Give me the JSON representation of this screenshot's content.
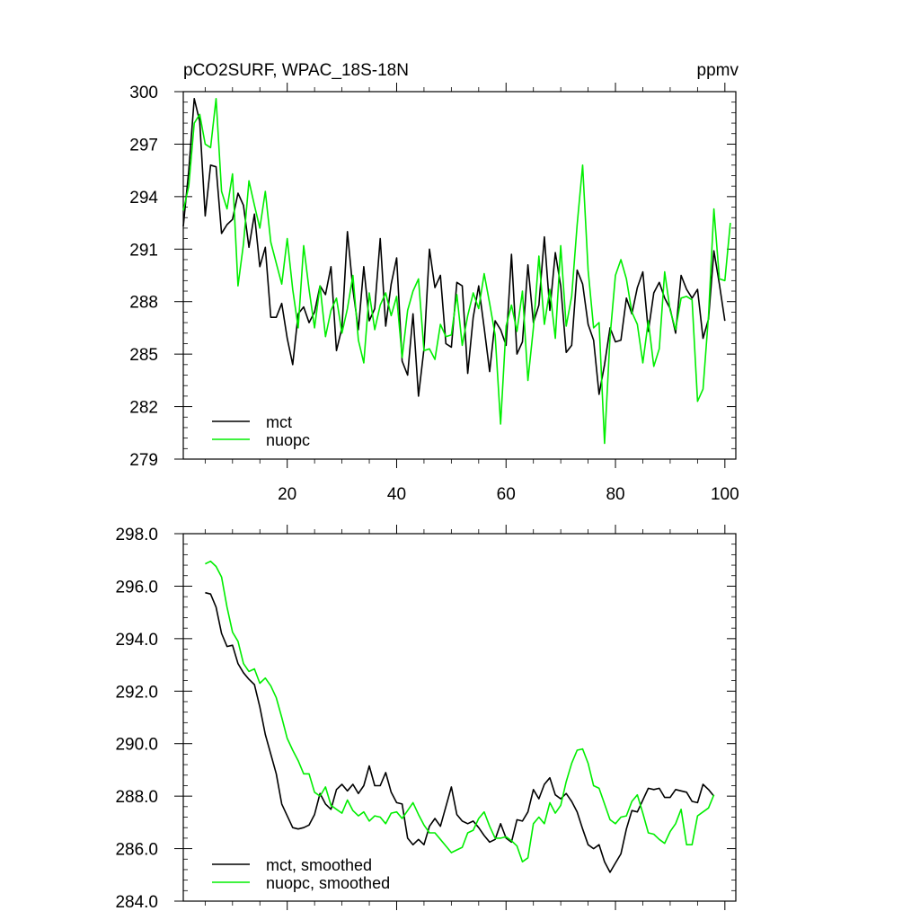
{
  "chart_data": [
    {
      "type": "line",
      "title_left": "pCO2SURF, WPAC_18S-18N",
      "title_right": "ppmv",
      "xlabel": "",
      "ylabel": "",
      "xlim": [
        1,
        102
      ],
      "ylim": [
        279,
        300
      ],
      "x_ticks": [
        20,
        40,
        60,
        80,
        100
      ],
      "x_tick_labels": [
        "20",
        "40",
        "60",
        "80",
        "100"
      ],
      "y_ticks": [
        279,
        282,
        285,
        288,
        291,
        294,
        297,
        300
      ],
      "y_tick_labels": [
        "279",
        "282",
        "285",
        "288",
        "291",
        "294",
        "297",
        "300"
      ],
      "legend_position": "bottom-left",
      "series": [
        {
          "name": "mct",
          "color": "#000000",
          "x_start": 1,
          "values": [
            292.3,
            295.5,
            299.6,
            298.3,
            292.9,
            295.8,
            295.7,
            291.9,
            292.4,
            292.7,
            294.2,
            293.5,
            291.1,
            293.0,
            290.0,
            291.1,
            287.1,
            287.1,
            287.9,
            285.9,
            284.4,
            287.3,
            287.7,
            286.8,
            287.4,
            288.9,
            288.4,
            290.0,
            285.2,
            286.5,
            292.0,
            288.7,
            286.4,
            290.0,
            286.9,
            287.6,
            291.6,
            286.6,
            289.0,
            290.5,
            284.6,
            283.8,
            287.3,
            282.6,
            285.3,
            291.0,
            288.8,
            289.5,
            285.6,
            285.4,
            289.1,
            288.9,
            283.9,
            287.1,
            288.9,
            286.5,
            284.0,
            286.9,
            286.4,
            285.5,
            290.7,
            285.0,
            285.7,
            290.1,
            286.8,
            287.8,
            291.7,
            287.5,
            290.8,
            288.9,
            285.1,
            285.5,
            289.8,
            289.0,
            286.7,
            285.8,
            282.7,
            284.4,
            286.5,
            285.7,
            285.8,
            288.2,
            287.3,
            288.8,
            289.7,
            286.3,
            288.5,
            289.1,
            288.2,
            287.6,
            286.2,
            289.5,
            288.7,
            288.2,
            288.7,
            285.9,
            287.0,
            290.9,
            289.0,
            286.9
          ]
        },
        {
          "name": "nuopc",
          "color": "#00ee00",
          "x_start": 1,
          "values": [
            293.2,
            294.6,
            298.2,
            298.7,
            297.0,
            296.8,
            299.6,
            294.3,
            293.3,
            295.3,
            288.9,
            291.3,
            294.9,
            293.5,
            292.2,
            294.3,
            291.4,
            290.2,
            289.0,
            291.6,
            288.7,
            286.5,
            291.2,
            288.7,
            286.5,
            288.9,
            286.0,
            287.5,
            288.2,
            286.2,
            287.6,
            289.5,
            285.8,
            284.5,
            288.5,
            286.4,
            287.8,
            288.5,
            287.2,
            288.3,
            284.8,
            287.5,
            288.6,
            289.3,
            285.2,
            285.3,
            284.7,
            286.7,
            286.0,
            286.1,
            288.4,
            285.5,
            287.2,
            288.5,
            287.6,
            289.6,
            287.9,
            286.1,
            281.0,
            286.6,
            287.8,
            286.3,
            288.6,
            283.5,
            286.5,
            290.6,
            286.7,
            288.7,
            285.9,
            291.2,
            286.6,
            288.3,
            292.4,
            295.8,
            289.8,
            286.5,
            286.8,
            279.9,
            286.0,
            289.5,
            290.4,
            289.3,
            287.4,
            286.7,
            284.5,
            286.9,
            284.3,
            285.3,
            289.7,
            287.5,
            286.4,
            288.2,
            288.3,
            288.1,
            282.3,
            283.0,
            287.2,
            293.3,
            289.3,
            289.2,
            292.5
          ]
        }
      ]
    },
    {
      "type": "line",
      "title_left": "",
      "title_right": "",
      "xlabel": "",
      "ylabel": "",
      "xlim": [
        1,
        102
      ],
      "ylim": [
        284.0,
        298.0
      ],
      "x_ticks": [
        20,
        40,
        60,
        80,
        100
      ],
      "x_tick_labels": [],
      "y_ticks": [
        284.0,
        286.0,
        288.0,
        290.0,
        292.0,
        294.0,
        296.0,
        298.0
      ],
      "y_tick_labels": [
        "284.0",
        "286.0",
        "288.0",
        "290.0",
        "292.0",
        "294.0",
        "296.0",
        "298.0"
      ],
      "legend_position": "bottom-left",
      "series": [
        {
          "name": "mct, smoothed",
          "color": "#000000",
          "x_start": 5,
          "values": [
            295.75,
            295.7,
            295.2,
            294.2,
            293.7,
            293.75,
            293.05,
            292.7,
            292.45,
            292.25,
            291.4,
            290.35,
            289.6,
            288.85,
            287.7,
            287.25,
            286.8,
            286.75,
            286.8,
            286.9,
            287.3,
            288.1,
            287.7,
            287.5,
            288.25,
            288.45,
            288.2,
            288.45,
            288.1,
            288.4,
            289.15,
            288.4,
            288.4,
            288.9,
            288.15,
            287.75,
            287.7,
            286.4,
            286.15,
            286.35,
            286.15,
            286.85,
            287.15,
            286.85,
            287.6,
            288.35,
            287.3,
            287.05,
            286.95,
            287.05,
            286.8,
            286.5,
            286.25,
            286.35,
            286.95,
            286.4,
            286.25,
            287.1,
            287.05,
            287.4,
            288.25,
            287.9,
            288.45,
            288.7,
            288.05,
            287.9,
            288.1,
            287.8,
            287.4,
            286.75,
            286.15,
            286.0,
            286.15,
            285.5,
            285.1,
            285.45,
            285.8,
            286.75,
            287.45,
            287.4,
            287.85,
            288.3,
            288.25,
            288.3,
            287.95,
            287.95,
            288.25,
            288.2,
            288.15,
            287.8,
            287.75,
            288.45,
            288.25,
            288.0
          ]
        },
        {
          "name": "nuopc, smoothed",
          "color": "#00ee00",
          "x_start": 5,
          "values": [
            296.85,
            296.95,
            296.75,
            296.35,
            295.2,
            294.25,
            293.9,
            293.05,
            292.75,
            292.85,
            292.3,
            292.5,
            292.2,
            291.75,
            291.0,
            290.2,
            289.75,
            289.35,
            288.85,
            288.85,
            288.15,
            288.0,
            288.35,
            287.65,
            287.5,
            287.35,
            287.85,
            287.45,
            287.25,
            287.4,
            287.05,
            287.25,
            287.2,
            286.95,
            287.35,
            287.4,
            287.15,
            287.45,
            287.75,
            287.3,
            286.9,
            286.6,
            286.6,
            286.35,
            286.1,
            285.85,
            285.95,
            286.05,
            286.6,
            286.7,
            287.15,
            287.4,
            286.85,
            286.4,
            286.4,
            286.45,
            286.3,
            286.1,
            285.5,
            285.65,
            286.95,
            287.2,
            286.95,
            287.75,
            287.35,
            287.65,
            288.55,
            289.25,
            289.75,
            289.8,
            289.25,
            288.4,
            288.3,
            287.7,
            287.1,
            286.95,
            287.2,
            287.25,
            287.8,
            288.05,
            287.35,
            286.6,
            286.55,
            286.35,
            286.2,
            286.65,
            286.95,
            287.5,
            286.15,
            286.15,
            287.25,
            287.4,
            287.55,
            288.05
          ]
        }
      ]
    }
  ]
}
